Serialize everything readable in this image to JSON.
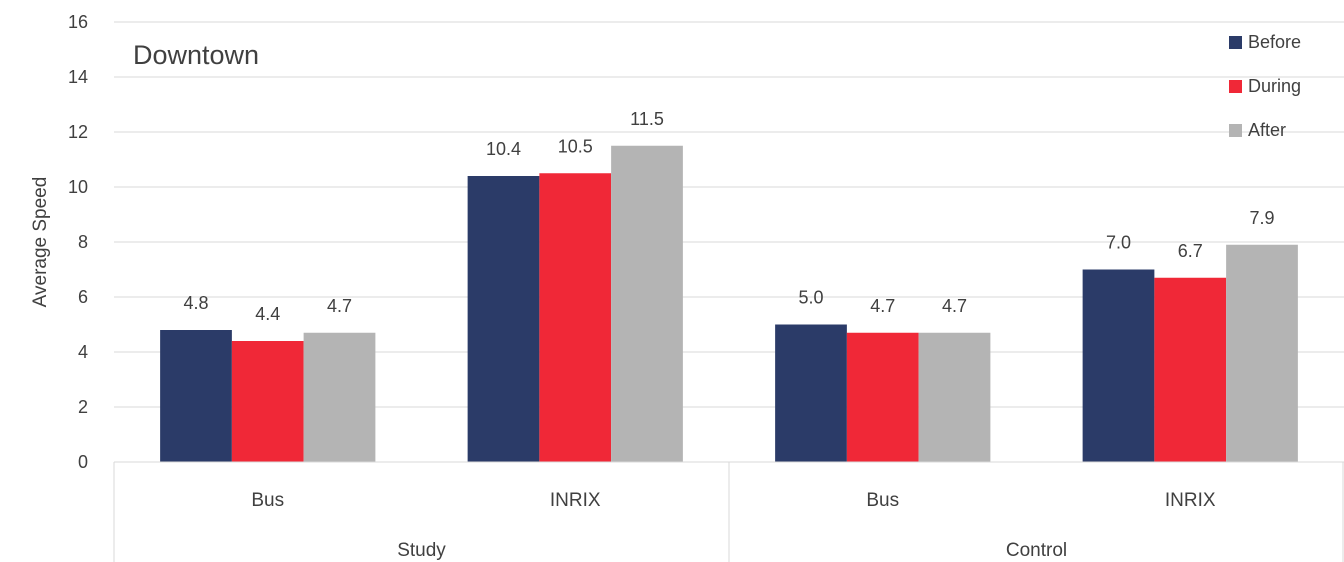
{
  "chart_data": {
    "type": "bar",
    "title": "Downtown",
    "ylabel": "Average Speed",
    "xlabel": "",
    "ylim": [
      0,
      16
    ],
    "yticks": [
      0,
      2,
      4,
      6,
      8,
      10,
      12,
      14,
      16
    ],
    "grid": true,
    "legend_position": "top-right",
    "groups": [
      {
        "name": "Study",
        "categories": [
          "Bus",
          "INRIX"
        ]
      },
      {
        "name": "Control",
        "categories": [
          "Bus",
          "INRIX"
        ]
      }
    ],
    "categories": [
      "Bus",
      "INRIX",
      "Bus",
      "INRIX"
    ],
    "series": [
      {
        "name": "Before",
        "color": "#2b3b68",
        "values": [
          4.8,
          10.4,
          5.0,
          7.0
        ],
        "labels": [
          "4.8",
          "10.4",
          "5.0",
          "7.0"
        ]
      },
      {
        "name": "During",
        "color": "#f02837",
        "values": [
          4.4,
          10.5,
          4.7,
          6.7
        ],
        "labels": [
          "4.4",
          "10.5",
          "4.7",
          "6.7"
        ]
      },
      {
        "name": "After",
        "color": "#b4b4b4",
        "values": [
          4.7,
          11.5,
          4.7,
          7.9
        ],
        "labels": [
          "4.7",
          "11.5",
          "4.7",
          "7.9"
        ]
      }
    ]
  }
}
